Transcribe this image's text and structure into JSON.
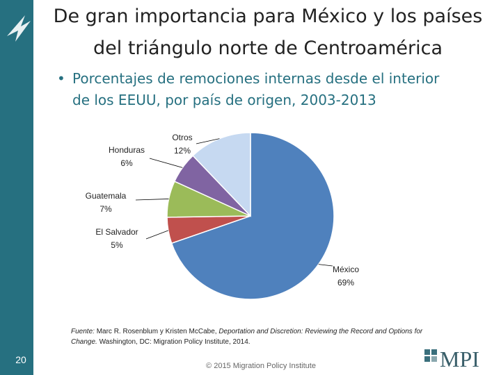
{
  "header": {
    "title": [
      "De gran importancia para México y los países",
      "del triángulo norte de Centroamérica"
    ],
    "bullet": [
      "Porcentajes de remociones internas desde el interior",
      "de los EEUU, por país de origen, 2003-2013"
    ]
  },
  "chart_data": {
    "type": "pie",
    "categories": [
      "México",
      "El Salvador",
      "Guatemala",
      "Honduras",
      "Otros"
    ],
    "values": [
      69,
      5,
      7,
      6,
      12
    ],
    "value_labels": [
      "69%",
      "5%",
      "7%",
      "6%",
      "12%"
    ],
    "colors": [
      "#4f81bd",
      "#c0504d",
      "#9bbb59",
      "#8064a2",
      "#c6d9f1"
    ]
  },
  "footer": {
    "source": [
      [
        {
          "text": "Fuente:",
          "italic": true
        },
        {
          "text": " Marc R. Rosenblum y Kristen McCabe, ",
          "italic": false
        },
        {
          "text": "Deportation and Discretion: Reviewing the Record and Options for",
          "italic": true
        }
      ],
      [
        {
          "text": "Change.",
          "italic": true
        },
        {
          "text": " Washington, DC: Migration Policy Institute, 2014.",
          "italic": false
        }
      ]
    ],
    "page": "20",
    "copyright": "© 2015 Migration Policy Institute",
    "logo": "MPI"
  }
}
